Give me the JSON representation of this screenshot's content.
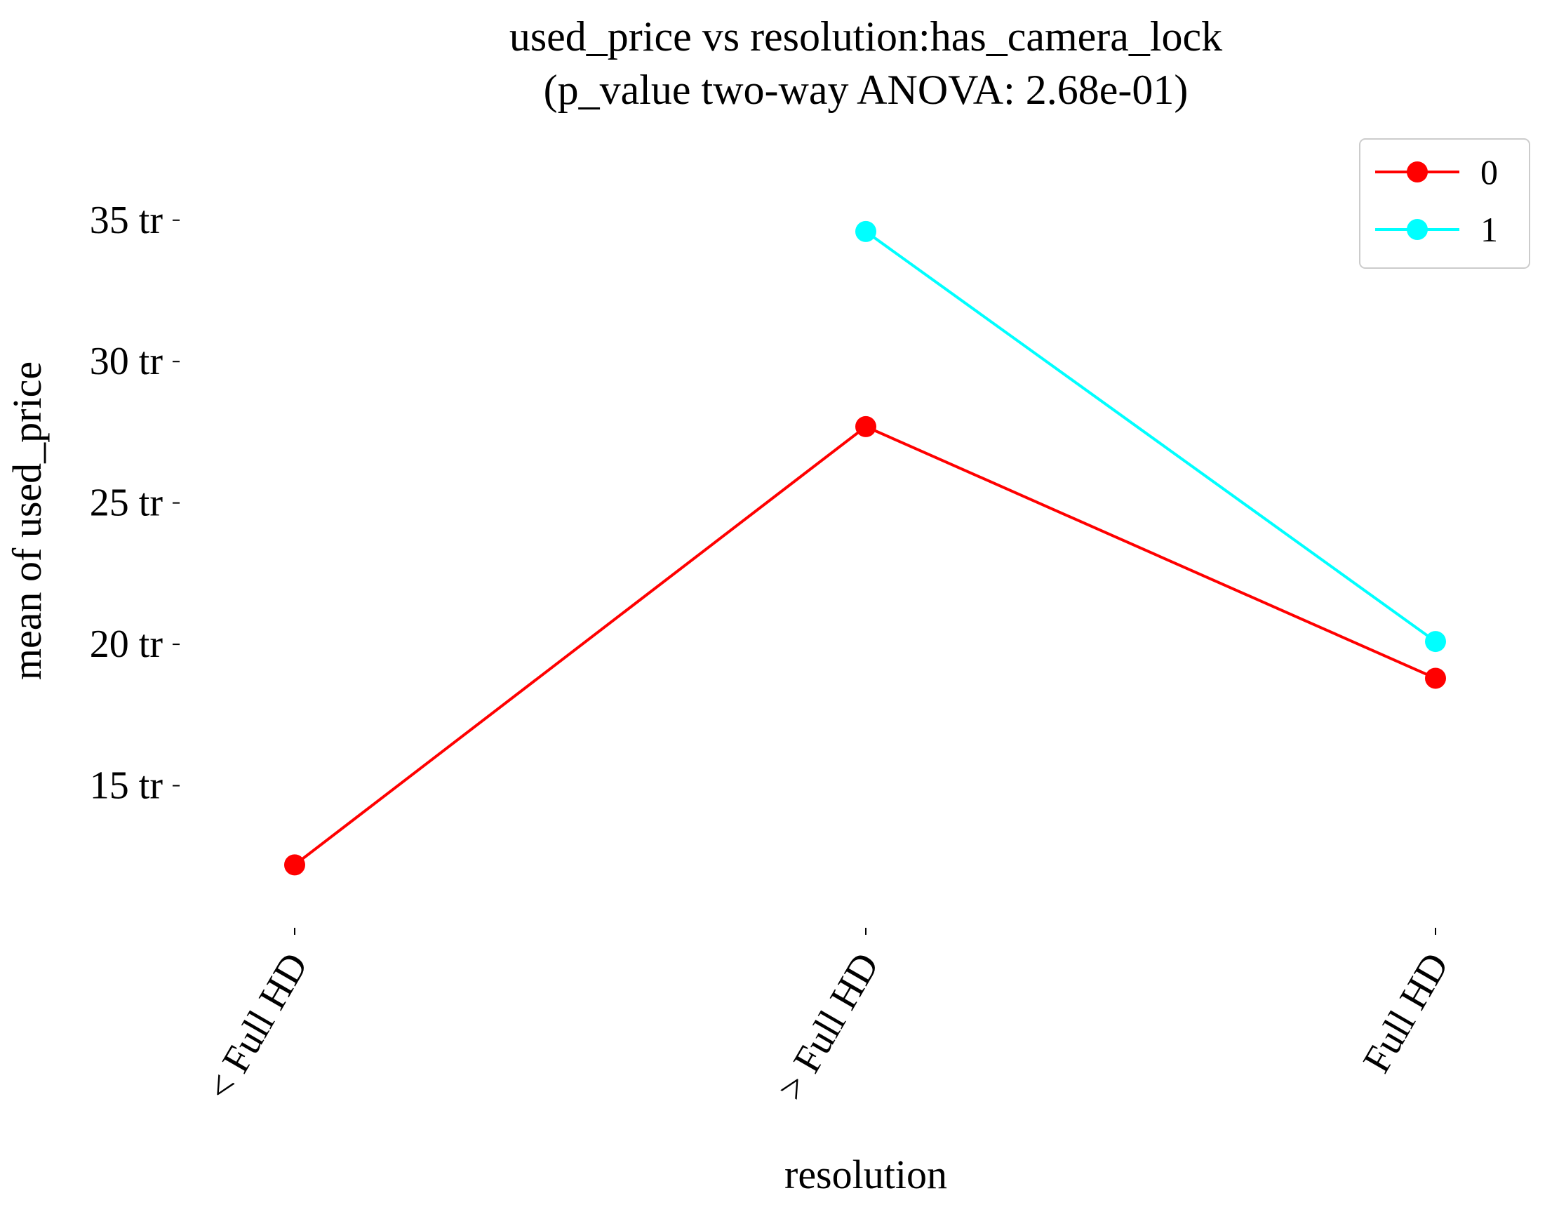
{
  "chart_data": {
    "type": "line",
    "title": "used_price vs resolution:has_camera_lock",
    "subtitle": "(p_value two-way ANOVA: 2.68e-01)",
    "xlabel": "resolution",
    "ylabel": "mean of used_price",
    "categories": [
      "< Full HD",
      "> Full HD",
      "Full HD"
    ],
    "y_ticks": [
      15,
      20,
      25,
      30,
      35
    ],
    "y_tick_labels": [
      "15 tr",
      "20 tr",
      "25 tr",
      "30 tr",
      "35 tr"
    ],
    "ylim": [
      9.9,
      37.7
    ],
    "grid": false,
    "legend_position": "top-right",
    "series": [
      {
        "name": "0",
        "color": "#ff0000",
        "values": [
          12.2,
          27.7,
          18.8
        ]
      },
      {
        "name": "1",
        "color": "#00ffff",
        "values": [
          null,
          34.6,
          20.1
        ]
      }
    ]
  }
}
